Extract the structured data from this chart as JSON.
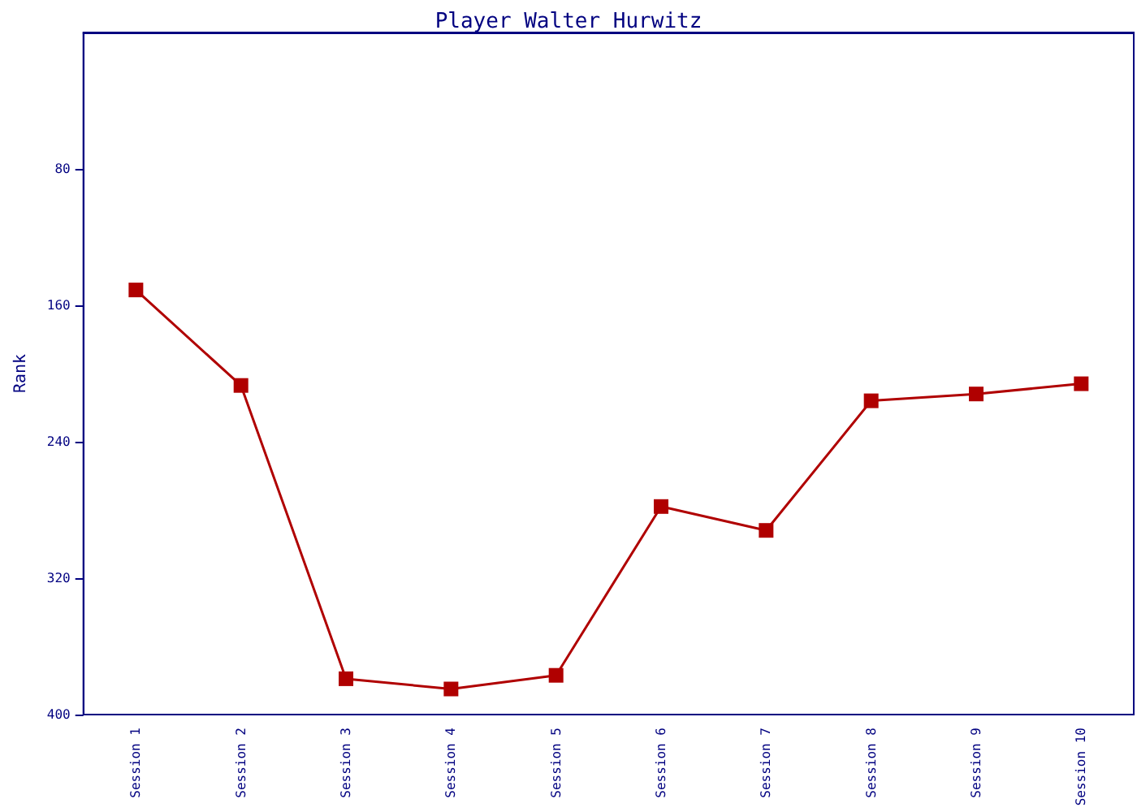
{
  "chart_data": {
    "type": "line",
    "title": "Player Walter Hurwitz",
    "ylabel": "Rank",
    "categories": [
      "Session 1",
      "Session 2",
      "Session 3",
      "Session 4",
      "Session 5",
      "Session 6",
      "Session 7",
      "Session 8",
      "Session 9",
      "Session 10"
    ],
    "series": [
      {
        "color": "#b00000",
        "values": [
          151,
          207,
          379,
          385,
          377,
          278,
          292,
          216,
          212,
          206
        ]
      }
    ],
    "ylim": [
      400,
      0
    ],
    "yticks": [
      80,
      160,
      240,
      320,
      400
    ],
    "grid": false,
    "marker": "square",
    "line_style": "solid"
  }
}
